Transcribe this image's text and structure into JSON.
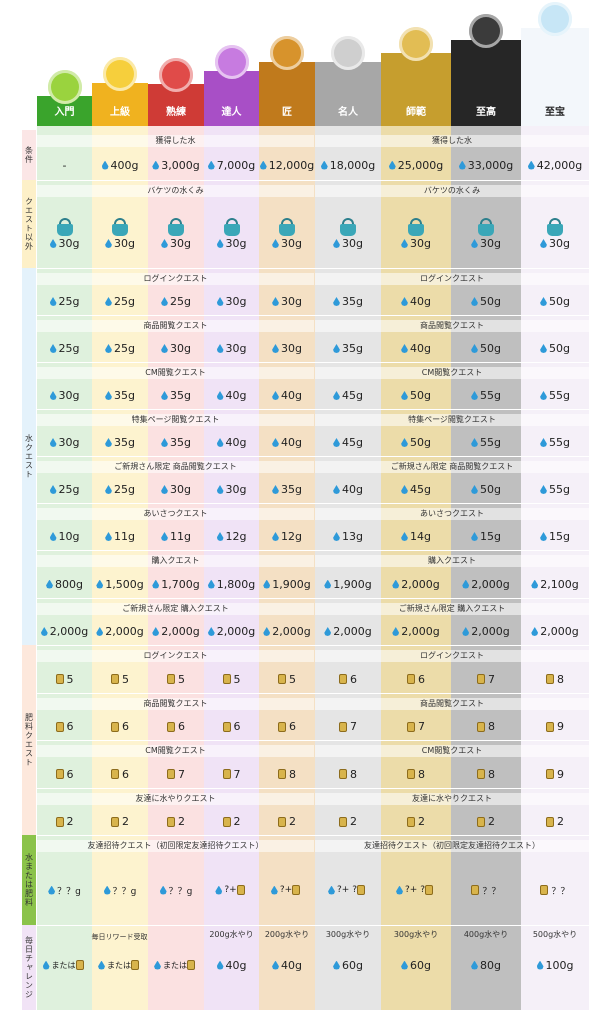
{
  "ranks": [
    {
      "name": "入門",
      "color": "#3aa42c",
      "badge": "#9ad33e"
    },
    {
      "name": "上級",
      "color": "#f0b21f",
      "badge": "#f6cf3c"
    },
    {
      "name": "熟練",
      "color": "#cf3b36",
      "badge": "#e04b49"
    },
    {
      "name": "達人",
      "color": "#a84fc6",
      "badge": "#c77be0"
    },
    {
      "name": "匠",
      "color": "#c07a1c",
      "badge": "#d7932c"
    },
    {
      "name": "名人",
      "color": "#a7a7a7",
      "badge": "#cfcfcf"
    },
    {
      "name": "師範",
      "color": "#c69e2e",
      "badge": "#e2bd54"
    },
    {
      "name": "至高",
      "color": "#262626",
      "badge": "#3b3b3b"
    },
    {
      "name": "至宝",
      "color": "#f3f7fb",
      "badge": "#c7e6f6"
    }
  ],
  "column_tints": [
    "#dff1dd",
    "#fdf3cf",
    "#fbe1e1",
    "#f0e3f6",
    "#f4e0c4",
    "#e5e5e5",
    "#ecdca9",
    "#bfbfbf",
    "#f5f0f8"
  ],
  "section_labels": {
    "conditions": "条件",
    "non_quest": "クエスト以外",
    "water_quest": "水クエスト",
    "fertilizer_quest": "肥料クエスト",
    "water_or_fertilizer": "水または肥料",
    "daily_challenge": "毎日チャレンジ"
  },
  "rows": [
    {
      "title": "獲得した水",
      "kind": "drop",
      "values": [
        "-",
        "400g",
        "3,000g",
        "7,000g",
        "12,000g",
        "18,000g",
        "25,000g",
        "33,000g",
        "42,000g"
      ]
    },
    {
      "title": "バケツの水くみ",
      "kind": "bucket",
      "values": [
        "30g",
        "30g",
        "30g",
        "30g",
        "30g",
        "30g",
        "30g",
        "30g",
        "30g"
      ]
    },
    {
      "title": "ログインクエスト",
      "kind": "drop",
      "values": [
        "25g",
        "25g",
        "25g",
        "30g",
        "30g",
        "35g",
        "40g",
        "50g",
        "50g"
      ]
    },
    {
      "title": "商品閲覧クエスト",
      "kind": "drop",
      "values": [
        "25g",
        "25g",
        "30g",
        "30g",
        "30g",
        "35g",
        "40g",
        "50g",
        "50g"
      ]
    },
    {
      "title": "CM閲覧クエスト",
      "kind": "drop",
      "values": [
        "30g",
        "35g",
        "35g",
        "40g",
        "40g",
        "45g",
        "50g",
        "55g",
        "55g"
      ]
    },
    {
      "title": "特集ページ閲覧クエスト",
      "kind": "drop",
      "values": [
        "30g",
        "35g",
        "35g",
        "40g",
        "40g",
        "45g",
        "50g",
        "55g",
        "55g"
      ]
    },
    {
      "title": "ご新規さん限定 商品閲覧クエスト",
      "kind": "drop",
      "values": [
        "25g",
        "25g",
        "30g",
        "30g",
        "35g",
        "40g",
        "45g",
        "50g",
        "55g"
      ]
    },
    {
      "title": "あいさつクエスト",
      "kind": "drop",
      "values": [
        "10g",
        "11g",
        "11g",
        "12g",
        "12g",
        "13g",
        "14g",
        "15g",
        "15g"
      ]
    },
    {
      "title": "購入クエスト",
      "kind": "drop",
      "values": [
        "800g",
        "1,500g",
        "1,700g",
        "1,800g",
        "1,900g",
        "1,900g",
        "2,000g",
        "2,000g",
        "2,100g"
      ]
    },
    {
      "title": "ご新規さん限定 購入クエスト",
      "kind": "drop",
      "values": [
        "2,000g",
        "2,000g",
        "2,000g",
        "2,000g",
        "2,000g",
        "2,000g",
        "2,000g",
        "2,000g",
        "2,000g"
      ]
    },
    {
      "title": "ログインクエスト",
      "kind": "fert",
      "values": [
        "5",
        "5",
        "5",
        "5",
        "5",
        "6",
        "6",
        "7",
        "8"
      ]
    },
    {
      "title": "商品閲覧クエスト",
      "kind": "fert",
      "values": [
        "6",
        "6",
        "6",
        "6",
        "6",
        "7",
        "7",
        "8",
        "9"
      ]
    },
    {
      "title": "CM閲覧クエスト",
      "kind": "fert",
      "values": [
        "6",
        "6",
        "7",
        "7",
        "8",
        "8",
        "8",
        "8",
        "9"
      ]
    },
    {
      "title": "友達に水やりクエスト",
      "kind": "fert",
      "values": [
        "2",
        "2",
        "2",
        "2",
        "2",
        "2",
        "2",
        "2",
        "2"
      ]
    },
    {
      "title": "友達招待クエスト（初回限定友達招待クエスト）",
      "kind": "mixed",
      "values": [
        "？？g",
        "？？g",
        "？？g",
        "?+",
        "?+",
        "?+ ?",
        "?+ ?",
        "？？",
        "？？"
      ]
    }
  ],
  "daily": {
    "title_left": "毎日リワード受取",
    "top_labels": [
      "",
      "",
      "",
      "200g水やり",
      "200g水やり",
      "300g水やり",
      "300g水やり",
      "400g水やり",
      "500g水やり"
    ],
    "or_text": "または",
    "values": [
      "",
      "",
      "",
      "40g",
      "40g",
      "60g",
      "60g",
      "80g",
      "100g"
    ]
  }
}
